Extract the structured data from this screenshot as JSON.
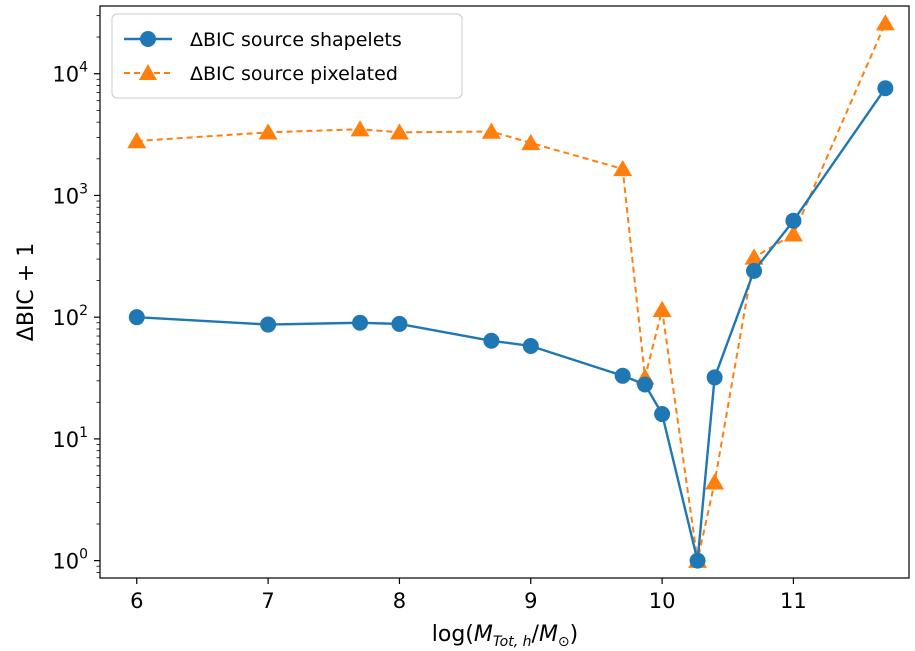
{
  "chart_data": {
    "type": "line",
    "xlabel": {
      "prefix": "log(",
      "M": "M",
      "sub1": "Tot, h",
      "slash": "/",
      "sub2": "⊙",
      "suffix": ")"
    },
    "ylabel": "ΔBIC + 1",
    "xlim": [
      5.72,
      11.88
    ],
    "ylim": [
      0.72,
      36000
    ],
    "yscale": "log",
    "grid": false,
    "legend_position": "top-left",
    "x_ticks": [
      6,
      7,
      8,
      9,
      10,
      11
    ],
    "y_ticks": [
      {
        "value": 1,
        "base": "10",
        "exp": "0"
      },
      {
        "value": 10,
        "base": "10",
        "exp": "1"
      },
      {
        "value": 100,
        "base": "10",
        "exp": "2"
      },
      {
        "value": 1000,
        "base": "10",
        "exp": "3"
      },
      {
        "value": 10000,
        "base": "10",
        "exp": "4"
      }
    ],
    "series": [
      {
        "name": "ΔBIC source shapelets",
        "color": "#1f77b4",
        "marker": "circle",
        "linestyle": "solid",
        "x": [
          6,
          7,
          7.7,
          8,
          8.7,
          9,
          9.7,
          9.87,
          10,
          10.27,
          10.4,
          10.7,
          11,
          11.7
        ],
        "y": [
          100,
          87,
          90,
          88,
          64,
          58,
          33,
          28,
          16,
          1,
          32,
          240,
          620,
          7600
        ]
      },
      {
        "name": "ΔBIC source pixelated",
        "color": "#ff7f0e",
        "marker": "triangle",
        "linestyle": "dashed",
        "x": [
          6,
          7,
          7.7,
          8,
          8.7,
          9,
          9.7,
          9.87,
          10,
          10.27,
          10.4,
          10.7,
          11,
          11.7
        ],
        "y": [
          2800,
          3300,
          3500,
          3300,
          3350,
          2700,
          1650,
          32,
          115,
          1,
          4.4,
          310,
          480,
          26000
        ]
      }
    ]
  }
}
